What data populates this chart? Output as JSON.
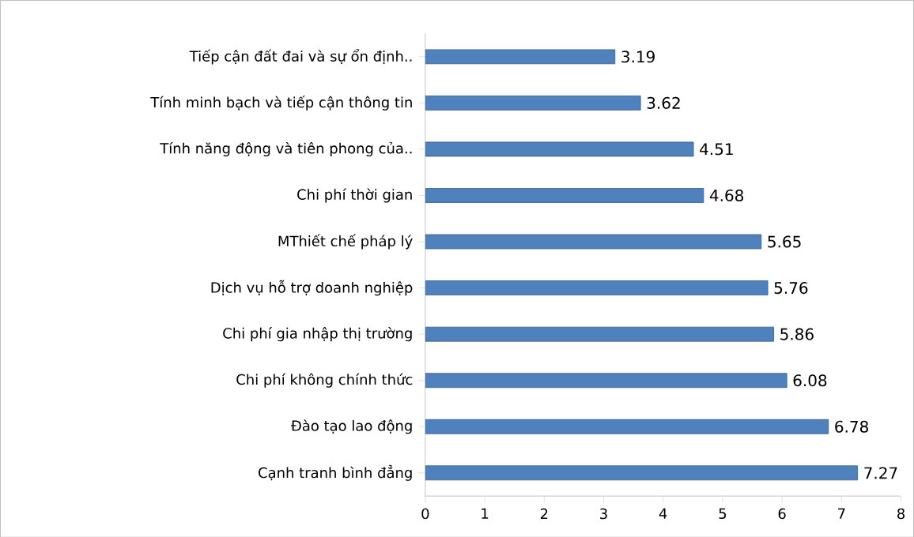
{
  "chart_data": {
    "type": "bar",
    "orientation": "horizontal",
    "categories": [
      "Tiếp cận đất đai và sự ổn định..",
      "Tính minh bạch và tiếp cận thông tin",
      "Tính năng động và tiên phong của..",
      "Chi phí thời gian",
      "MThiết chế pháp lý",
      "Dịch vụ hỗ trợ doanh nghiệp",
      "Chi phí gia nhập thị trường",
      "Chi phí không chính thức",
      "Đào tạo lao động",
      "Cạnh tranh bình đẳng"
    ],
    "values": [
      3.19,
      3.62,
      4.51,
      4.68,
      5.65,
      5.76,
      5.86,
      6.08,
      6.78,
      7.27
    ],
    "color": "#4f81bd",
    "xlim": [
      0,
      8
    ],
    "xticks": [
      0,
      1,
      2,
      3,
      4,
      5,
      6,
      7,
      8
    ],
    "data_labels": true
  }
}
